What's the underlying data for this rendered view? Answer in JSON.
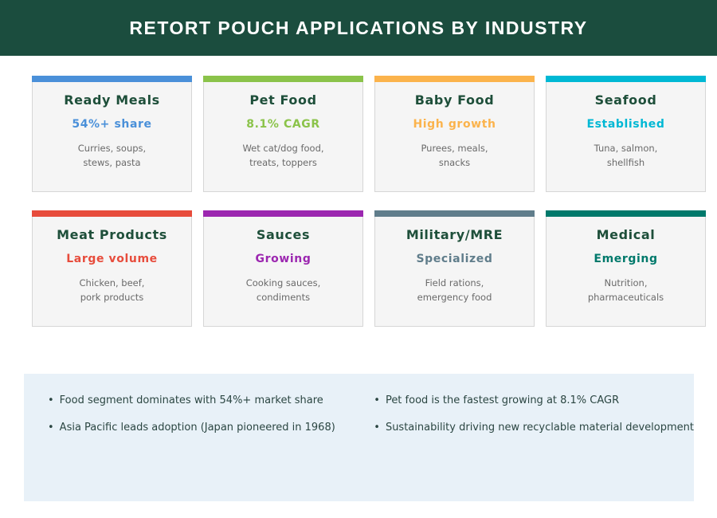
{
  "header": {
    "title": "RETORT POUCH APPLICATIONS BY INDUSTRY",
    "bg": "#1b4d3e",
    "text_color": "#ffffff"
  },
  "cards": [
    {
      "title": "Ready Meals",
      "subtitle": "54%+ share",
      "desc": [
        "Curries, soups,",
        "stews, pasta"
      ],
      "accent": "#4a90d9"
    },
    {
      "title": "Pet Food",
      "subtitle": "8.1% CAGR",
      "desc": [
        "Wet cat/dog food,",
        "treats, toppers"
      ],
      "accent": "#8bc34a"
    },
    {
      "title": "Baby Food",
      "subtitle": "High growth",
      "desc": [
        "Purees, meals,",
        "snacks"
      ],
      "accent": "#fbb34c"
    },
    {
      "title": "Seafood",
      "subtitle": "Established",
      "desc": [
        "Tuna, salmon,",
        "shellfish"
      ],
      "accent": "#00b8d4"
    },
    {
      "title": "Meat Products",
      "subtitle": "Large volume",
      "desc": [
        "Chicken, beef,",
        "pork products"
      ],
      "accent": "#e74c3c"
    },
    {
      "title": "Sauces",
      "subtitle": "Growing",
      "desc": [
        "Cooking sauces,",
        "condiments"
      ],
      "accent": "#9c27b0"
    },
    {
      "title": "Military/MRE",
      "subtitle": "Specialized",
      "desc": [
        "Field rations,",
        "emergency food"
      ],
      "accent": "#607d8b"
    },
    {
      "title": "Medical",
      "subtitle": "Emerging",
      "desc": [
        "Nutrition,",
        "pharmaceuticals"
      ],
      "accent": "#00796b"
    }
  ],
  "insights": {
    "bg": "#e8f1f8",
    "bullet_char": "•",
    "columns": [
      {
        "bullets": [
          "Food segment dominates with 54%+ market share",
          "Asia Pacific leads adoption (Japan pioneered in 1968)"
        ]
      },
      {
        "bullets": [
          "Pet food is the fastest growing at 8.1% CAGR",
          "Sustainability driving new recyclable material development"
        ]
      }
    ]
  }
}
